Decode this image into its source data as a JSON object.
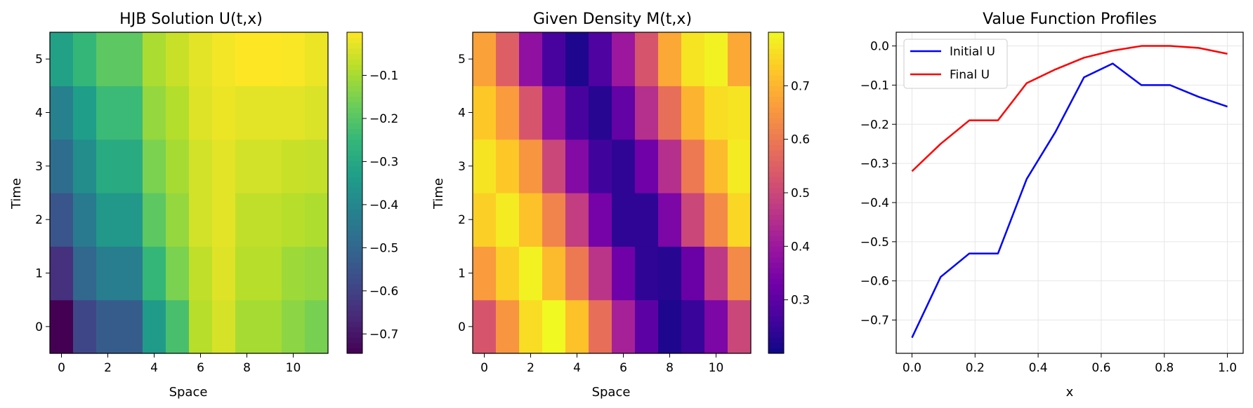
{
  "chart_data": [
    {
      "type": "heatmap",
      "title": "HJB Solution U(t,x)",
      "xlabel": "Space",
      "ylabel": "Time",
      "colormap": "viridis",
      "xticks": [
        0,
        2,
        4,
        6,
        8,
        10
      ],
      "yticks": [
        0,
        1,
        2,
        3,
        4,
        5
      ],
      "colorbar_ticks": [
        -0.1,
        -0.2,
        -0.3,
        -0.4,
        -0.5,
        -0.6,
        -0.7
      ],
      "colorbar_tick_labels": [
        "−0.1",
        "−0.2",
        "−0.3",
        "−0.4",
        "−0.5",
        "−0.6",
        "−0.7"
      ],
      "vmin": -0.745,
      "vmax": 0.0,
      "rows_time": [
        0,
        1,
        2,
        3,
        4,
        5
      ],
      "cols_space": [
        0,
        1,
        2,
        3,
        4,
        5,
        6,
        7,
        8,
        9,
        10,
        11
      ],
      "values": [
        [
          -0.745,
          -0.59,
          -0.53,
          -0.53,
          -0.34,
          -0.22,
          -0.08,
          -0.045,
          -0.1,
          -0.1,
          -0.13,
          -0.155
        ],
        [
          -0.64,
          -0.5,
          -0.43,
          -0.43,
          -0.25,
          -0.15,
          -0.07,
          -0.035,
          -0.08,
          -0.08,
          -0.11,
          -0.12
        ],
        [
          -0.55,
          -0.44,
          -0.35,
          -0.35,
          -0.19,
          -0.12,
          -0.05,
          -0.03,
          -0.07,
          -0.07,
          -0.08,
          -0.09
        ],
        [
          -0.48,
          -0.38,
          -0.29,
          -0.29,
          -0.15,
          -0.1,
          -0.05,
          -0.03,
          -0.05,
          -0.05,
          -0.06,
          -0.065
        ],
        [
          -0.42,
          -0.33,
          -0.24,
          -0.24,
          -0.12,
          -0.085,
          -0.035,
          -0.02,
          -0.03,
          -0.03,
          -0.03,
          -0.04
        ],
        [
          -0.32,
          -0.25,
          -0.19,
          -0.19,
          -0.095,
          -0.06,
          -0.03,
          -0.012,
          0.0,
          0.0,
          -0.005,
          -0.02
        ]
      ]
    },
    {
      "type": "heatmap",
      "title": "Given Density M(t,x)",
      "xlabel": "Space",
      "ylabel": "Time",
      "colormap": "plasma",
      "xticks": [
        0,
        2,
        4,
        6,
        8,
        10
      ],
      "yticks": [
        0,
        1,
        2,
        3,
        4,
        5
      ],
      "colorbar_ticks": [
        0.7,
        0.6,
        0.5,
        0.4,
        0.3
      ],
      "colorbar_tick_labels": [
        "0.7",
        "0.6",
        "0.5",
        "0.4",
        "0.3"
      ],
      "vmin": 0.2,
      "vmax": 0.8,
      "rows_time": [
        0,
        1,
        2,
        3,
        4,
        5
      ],
      "cols_space": [
        0,
        1,
        2,
        3,
        4,
        5,
        6,
        7,
        8,
        9,
        10,
        11
      ],
      "values": [
        [
          0.53,
          0.65,
          0.76,
          0.8,
          0.72,
          0.58,
          0.42,
          0.3,
          0.22,
          0.25,
          0.35,
          0.5
        ],
        [
          0.66,
          0.74,
          0.79,
          0.71,
          0.6,
          0.46,
          0.33,
          0.24,
          0.23,
          0.32,
          0.47,
          0.63
        ],
        [
          0.74,
          0.78,
          0.72,
          0.62,
          0.48,
          0.34,
          0.24,
          0.24,
          0.35,
          0.5,
          0.63,
          0.75
        ],
        [
          0.77,
          0.73,
          0.65,
          0.5,
          0.36,
          0.26,
          0.24,
          0.33,
          0.45,
          0.6,
          0.71,
          0.78
        ],
        [
          0.73,
          0.66,
          0.53,
          0.38,
          0.27,
          0.23,
          0.31,
          0.45,
          0.58,
          0.7,
          0.76,
          0.77
        ],
        [
          0.67,
          0.55,
          0.38,
          0.27,
          0.22,
          0.28,
          0.4,
          0.53,
          0.68,
          0.77,
          0.79,
          0.68
        ]
      ]
    },
    {
      "type": "line",
      "title": "Value Function Profiles",
      "xlabel": "x",
      "ylabel": "",
      "xlim": [
        -0.05,
        1.05
      ],
      "ylim": [
        -0.785,
        0.035
      ],
      "xticks": [
        0.0,
        0.2,
        0.4,
        0.6,
        0.8,
        1.0
      ],
      "xtick_labels": [
        "0.0",
        "0.2",
        "0.4",
        "0.6",
        "0.8",
        "1.0"
      ],
      "yticks": [
        0.0,
        -0.1,
        -0.2,
        -0.3,
        -0.4,
        -0.5,
        -0.6,
        -0.7
      ],
      "ytick_labels": [
        "0.0",
        "−0.1",
        "−0.2",
        "−0.3",
        "−0.4",
        "−0.5",
        "−0.6",
        "−0.7"
      ],
      "grid": true,
      "legend_position": "upper-left",
      "x": [
        0.0,
        0.0909,
        0.1818,
        0.2727,
        0.3636,
        0.4545,
        0.5455,
        0.6364,
        0.7273,
        0.8182,
        0.9091,
        1.0
      ],
      "series": [
        {
          "name": "Initial U",
          "color": "#0000ff",
          "values": [
            -0.745,
            -0.59,
            -0.53,
            -0.53,
            -0.34,
            -0.22,
            -0.08,
            -0.045,
            -0.1,
            -0.1,
            -0.13,
            -0.155
          ]
        },
        {
          "name": "Final U",
          "color": "#ff0000",
          "values": [
            -0.32,
            -0.25,
            -0.19,
            -0.19,
            -0.095,
            -0.06,
            -0.03,
            -0.012,
            0.0,
            0.0,
            -0.005,
            -0.02
          ]
        }
      ]
    }
  ]
}
